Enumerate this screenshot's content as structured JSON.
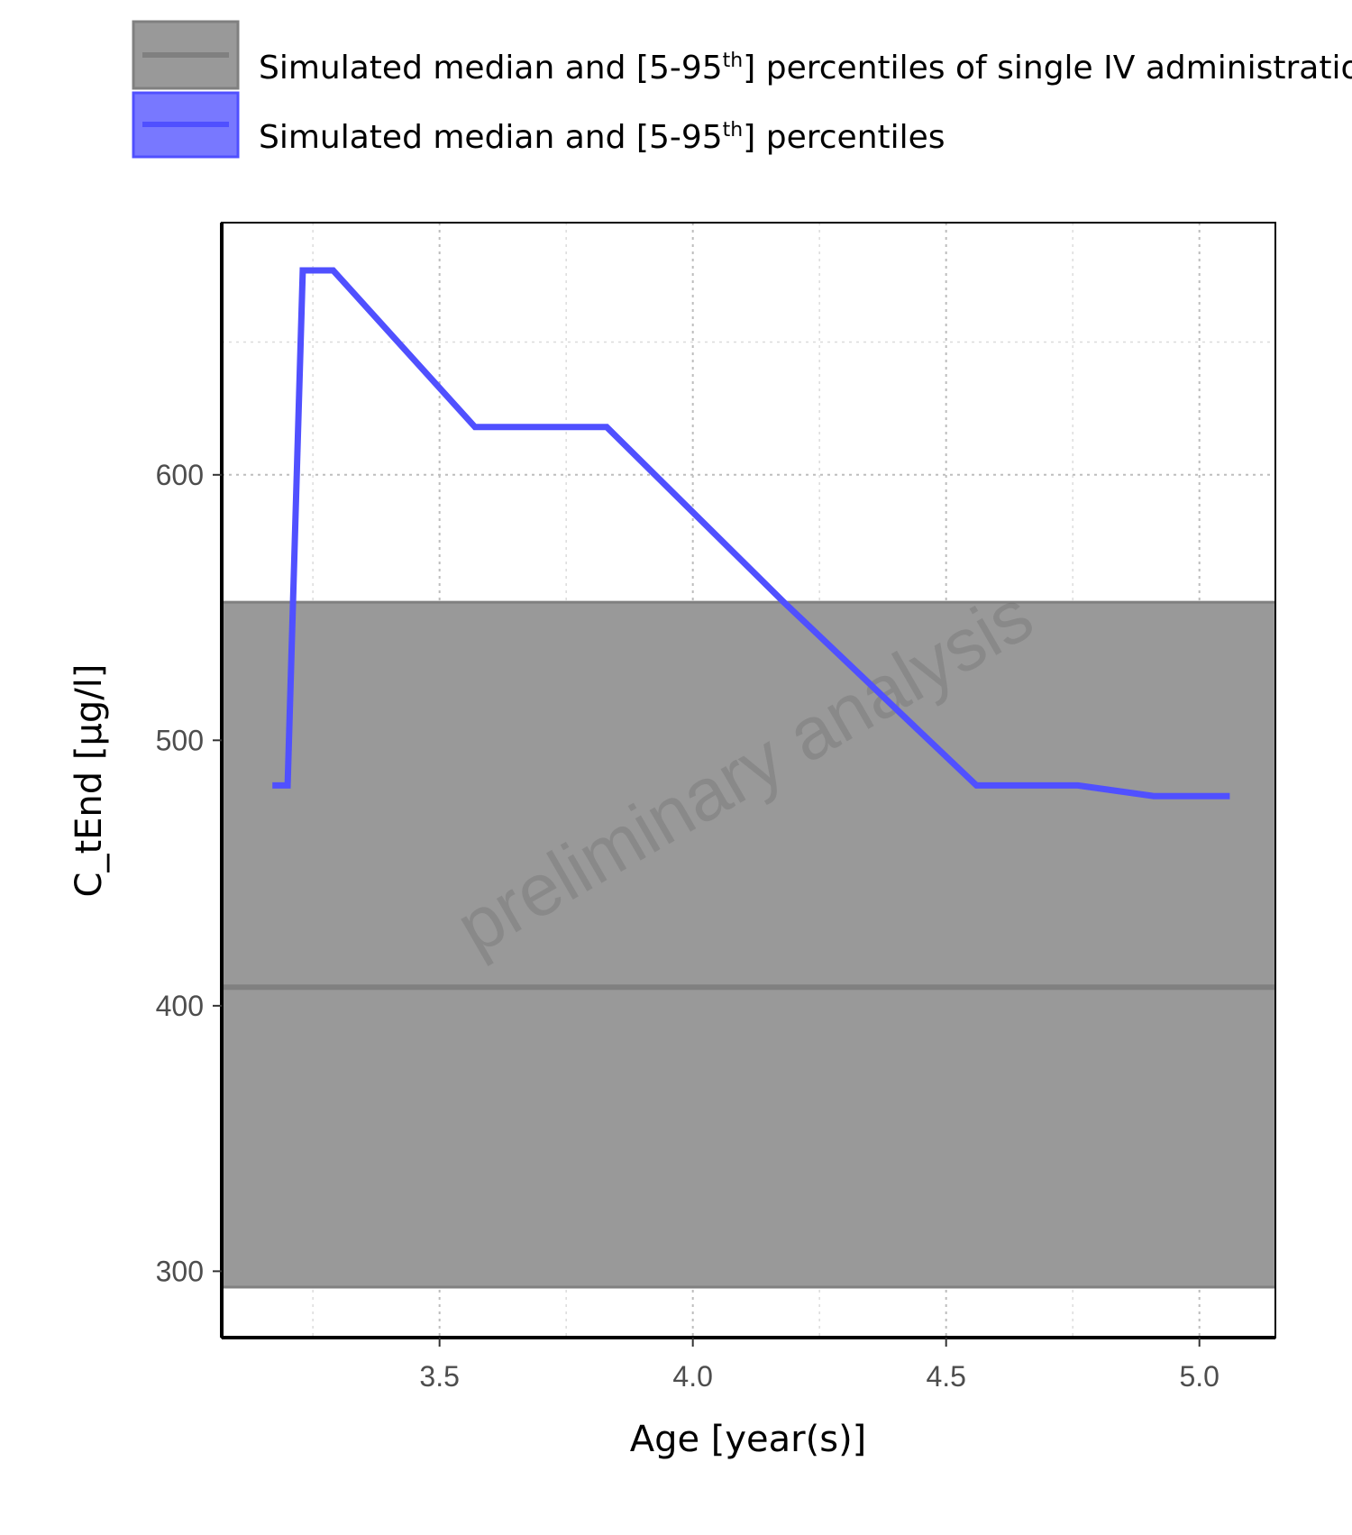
{
  "chart_data": {
    "type": "line",
    "xlabel": "Age [year(s)]",
    "ylabel": "C_tEnd [µg/l]",
    "xlim": [
      3.07,
      5.15
    ],
    "ylim": [
      275,
      695
    ],
    "x_ticks": [
      "3.5",
      "4.0",
      "4.5",
      "5.0"
    ],
    "x_tick_values": [
      3.5,
      4.0,
      4.5,
      5.0
    ],
    "y_ticks": [
      "300",
      "400",
      "500",
      "600"
    ],
    "y_tick_values": [
      300,
      400,
      500,
      600
    ],
    "grid": true,
    "watermark": "preliminary analysis",
    "legend": {
      "placement": "top-left",
      "entries": [
        {
          "prefix": "Simulated median and [5-95",
          "sup": "th",
          "suffix": "] percentiles of single IV administration",
          "color": "#808080"
        },
        {
          "prefix": "Simulated median and [5-95",
          "sup": "th",
          "suffix": "] percentiles",
          "color": "#5050ff"
        }
      ]
    },
    "reference_band": {
      "color": "#808080",
      "median": 407,
      "lower": 294,
      "upper": 552
    },
    "series": [
      {
        "color": "#5050ff",
        "x": [
          3.17,
          3.2,
          3.23,
          3.29,
          3.57,
          3.83,
          4.18,
          4.56,
          4.76,
          4.91,
          5.06
        ],
        "y": [
          483,
          483,
          677,
          677,
          618,
          618,
          552,
          483,
          483,
          479,
          479
        ]
      }
    ]
  }
}
